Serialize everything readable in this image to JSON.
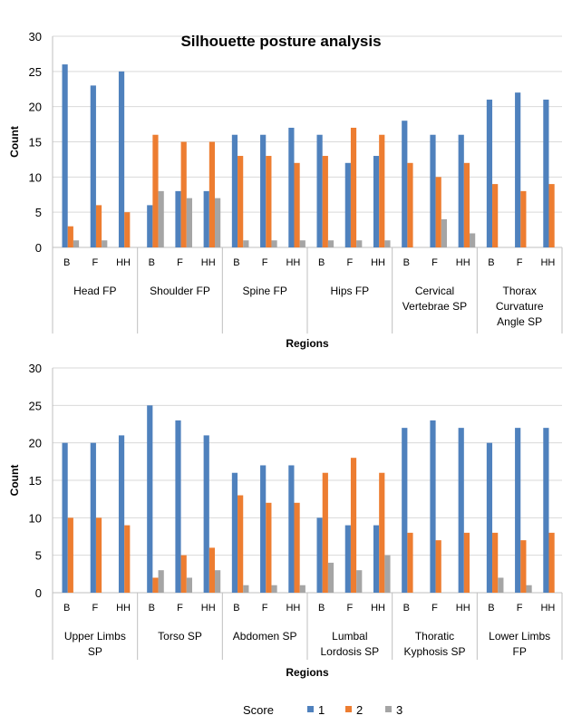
{
  "chart_data": [
    {
      "type": "bar",
      "title": "Silhouette posture analysis",
      "xlabel": "Regions",
      "ylabel": "Count",
      "ylim": [
        0,
        30
      ],
      "yticks": [
        0,
        5,
        10,
        15,
        20,
        25,
        30
      ],
      "grid": true,
      "groups": [
        {
          "label": [
            "Head FP"
          ],
          "subcategories": [
            "B",
            "F",
            "HH"
          ],
          "values": {
            "1": [
              26,
              23,
              25
            ],
            "2": [
              3,
              6,
              5
            ],
            "3": [
              1,
              1,
              0
            ]
          }
        },
        {
          "label": [
            "Shoulder FP"
          ],
          "subcategories": [
            "B",
            "F",
            "HH"
          ],
          "values": {
            "1": [
              6,
              8,
              8
            ],
            "2": [
              16,
              15,
              15
            ],
            "3": [
              8,
              7,
              7
            ]
          }
        },
        {
          "label": [
            "Spine FP"
          ],
          "subcategories": [
            "B",
            "F",
            "HH"
          ],
          "values": {
            "1": [
              16,
              16,
              17
            ],
            "2": [
              13,
              13,
              12
            ],
            "3": [
              1,
              1,
              1
            ]
          }
        },
        {
          "label": [
            "Hips FP"
          ],
          "subcategories": [
            "B",
            "F",
            "HH"
          ],
          "values": {
            "1": [
              16,
              12,
              13
            ],
            "2": [
              13,
              17,
              16
            ],
            "3": [
              1,
              1,
              1
            ]
          }
        },
        {
          "label": [
            "Cervical",
            "Vertebrae SP"
          ],
          "subcategories": [
            "B",
            "F",
            "HH"
          ],
          "values": {
            "1": [
              18,
              16,
              16
            ],
            "2": [
              12,
              10,
              12
            ],
            "3": [
              0,
              4,
              2
            ]
          }
        },
        {
          "label": [
            "Thorax",
            "Curvature",
            "Angle SP"
          ],
          "subcategories": [
            "B",
            "F",
            "HH"
          ],
          "values": {
            "1": [
              21,
              22,
              21
            ],
            "2": [
              9,
              8,
              9
            ],
            "3": [
              0,
              0,
              0
            ]
          }
        }
      ]
    },
    {
      "type": "bar",
      "title": "",
      "xlabel": "Regions",
      "ylabel": "Count",
      "ylim": [
        0,
        30
      ],
      "yticks": [
        0,
        5,
        10,
        15,
        20,
        25,
        30
      ],
      "grid": true,
      "groups": [
        {
          "label": [
            "Upper Limbs",
            "SP"
          ],
          "subcategories": [
            "B",
            "F",
            "HH"
          ],
          "values": {
            "1": [
              20,
              20,
              21
            ],
            "2": [
              10,
              10,
              9
            ],
            "3": [
              0,
              0,
              0
            ]
          }
        },
        {
          "label": [
            "Torso SP"
          ],
          "subcategories": [
            "B",
            "F",
            "HH"
          ],
          "values": {
            "1": [
              25,
              23,
              21
            ],
            "2": [
              2,
              5,
              6
            ],
            "3": [
              3,
              2,
              3
            ]
          }
        },
        {
          "label": [
            "Abdomen SP"
          ],
          "subcategories": [
            "B",
            "F",
            "HH"
          ],
          "values": {
            "1": [
              16,
              17,
              17
            ],
            "2": [
              13,
              12,
              12
            ],
            "3": [
              1,
              1,
              1
            ]
          }
        },
        {
          "label": [
            "Lumbal",
            "Lordosis SP"
          ],
          "subcategories": [
            "B",
            "F",
            "HH"
          ],
          "values": {
            "1": [
              10,
              9,
              9
            ],
            "2": [
              16,
              18,
              16
            ],
            "3": [
              4,
              3,
              5
            ]
          }
        },
        {
          "label": [
            "Thoratic",
            "Kyphosis SP"
          ],
          "subcategories": [
            "B",
            "F",
            "HH"
          ],
          "values": {
            "1": [
              22,
              23,
              22
            ],
            "2": [
              8,
              7,
              8
            ],
            "3": [
              0,
              0,
              0
            ]
          }
        },
        {
          "label": [
            "Lower Limbs",
            "FP"
          ],
          "subcategories": [
            "B",
            "F",
            "HH"
          ],
          "values": {
            "1": [
              20,
              22,
              22
            ],
            "2": [
              8,
              7,
              8
            ],
            "3": [
              2,
              1,
              0
            ]
          }
        }
      ]
    }
  ],
  "series": [
    {
      "key": "1",
      "name": "1",
      "color": "#4F81BD"
    },
    {
      "key": "2",
      "name": "2",
      "color": "#ED7D31"
    },
    {
      "key": "3",
      "name": "3",
      "color": "#A5A5A5"
    }
  ],
  "legend": {
    "title": "Score",
    "position": "bottom"
  },
  "colors": {
    "grid": "#d9d9d9",
    "axis": "#bfbfbf"
  }
}
